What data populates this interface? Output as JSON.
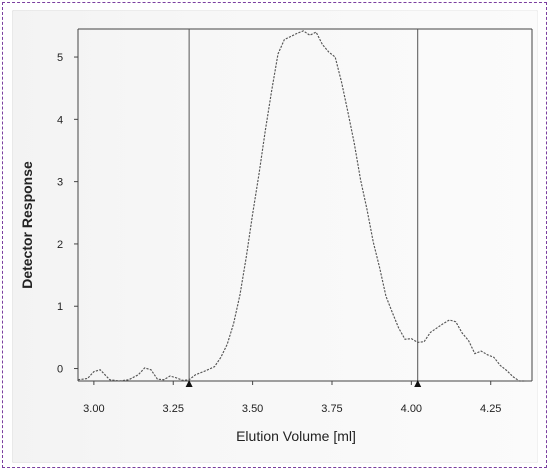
{
  "chart_data": {
    "type": "line",
    "xlabel": "Elution Volume [ml]",
    "ylabel": "Detector Response",
    "xlim": [
      2.95,
      4.38
    ],
    "ylim": [
      -0.2,
      5.45
    ],
    "xticks": [
      3.0,
      3.25,
      3.5,
      3.75,
      4.0,
      4.25
    ],
    "xtick_labels": [
      "3.00",
      "3.25",
      "3.50",
      "3.75",
      "4.00",
      "4.25"
    ],
    "yticks": [
      0,
      1,
      2,
      3,
      4,
      5
    ],
    "ytick_labels": [
      "0",
      "1",
      "2",
      "3",
      "4",
      "5"
    ],
    "vertical_markers": [
      3.3,
      4.02
    ],
    "grid": false,
    "series": [
      {
        "x": [
          2.95,
          2.98,
          3.0,
          3.02,
          3.05,
          3.08,
          3.11,
          3.14,
          3.16,
          3.18,
          3.2,
          3.22,
          3.24,
          3.26,
          3.28,
          3.3,
          3.32,
          3.35,
          3.38,
          3.4,
          3.42,
          3.44,
          3.46,
          3.48,
          3.5,
          3.52,
          3.54,
          3.56,
          3.58,
          3.6,
          3.62,
          3.64,
          3.66,
          3.68,
          3.7,
          3.72,
          3.74,
          3.76,
          3.78,
          3.8,
          3.82,
          3.84,
          3.86,
          3.88,
          3.9,
          3.92,
          3.94,
          3.96,
          3.98,
          4.0,
          4.02,
          4.04,
          4.06,
          4.08,
          4.1,
          4.12,
          4.14,
          4.16,
          4.18,
          4.2,
          4.22,
          4.24,
          4.26,
          4.28,
          4.3,
          4.32,
          4.34,
          4.36
        ],
        "y": [
          -0.18,
          -0.16,
          -0.05,
          -0.02,
          -0.18,
          -0.2,
          -0.18,
          -0.1,
          0.01,
          -0.02,
          -0.17,
          -0.18,
          -0.12,
          -0.15,
          -0.19,
          -0.18,
          -0.1,
          -0.04,
          0.03,
          0.18,
          0.39,
          0.72,
          1.18,
          1.79,
          2.48,
          3.12,
          3.82,
          4.46,
          5.05,
          5.28,
          5.33,
          5.38,
          5.42,
          5.35,
          5.4,
          5.2,
          5.08,
          5.0,
          4.6,
          4.12,
          3.62,
          3.03,
          2.56,
          2.03,
          1.62,
          1.16,
          0.9,
          0.65,
          0.47,
          0.48,
          0.42,
          0.43,
          0.58,
          0.65,
          0.72,
          0.78,
          0.75,
          0.57,
          0.45,
          0.24,
          0.28,
          0.22,
          0.18,
          0.05,
          -0.03,
          -0.13,
          -0.2,
          -0.2
        ]
      }
    ]
  }
}
